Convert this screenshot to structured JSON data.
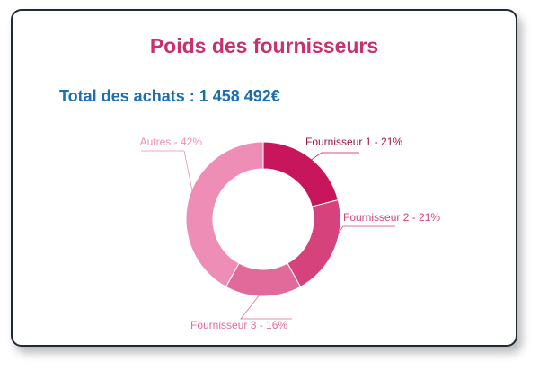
{
  "card": {
    "title": "Poids des fournisseurs",
    "total": "Total des achats : 1 458 492€"
  },
  "chart_data": {
    "type": "pie",
    "variant": "donut",
    "categories": [
      "Fournisseur 1",
      "Fournisseur 2",
      "Fournisseur 3",
      "Autres"
    ],
    "values": [
      21,
      21,
      16,
      42
    ],
    "unit": "%",
    "labels": [
      "Fournisseur 1 - 21%",
      "Fournisseur 2 - 21%",
      "Fournisseur 3 - 16%",
      "Autres - 42%"
    ],
    "colors": [
      "#c8165c",
      "#d5427c",
      "#e16a9b",
      "#ee8db5"
    ]
  },
  "colors": {
    "title": "#c8306f",
    "total": "#1a6fb0",
    "border": "#1f2a36"
  }
}
